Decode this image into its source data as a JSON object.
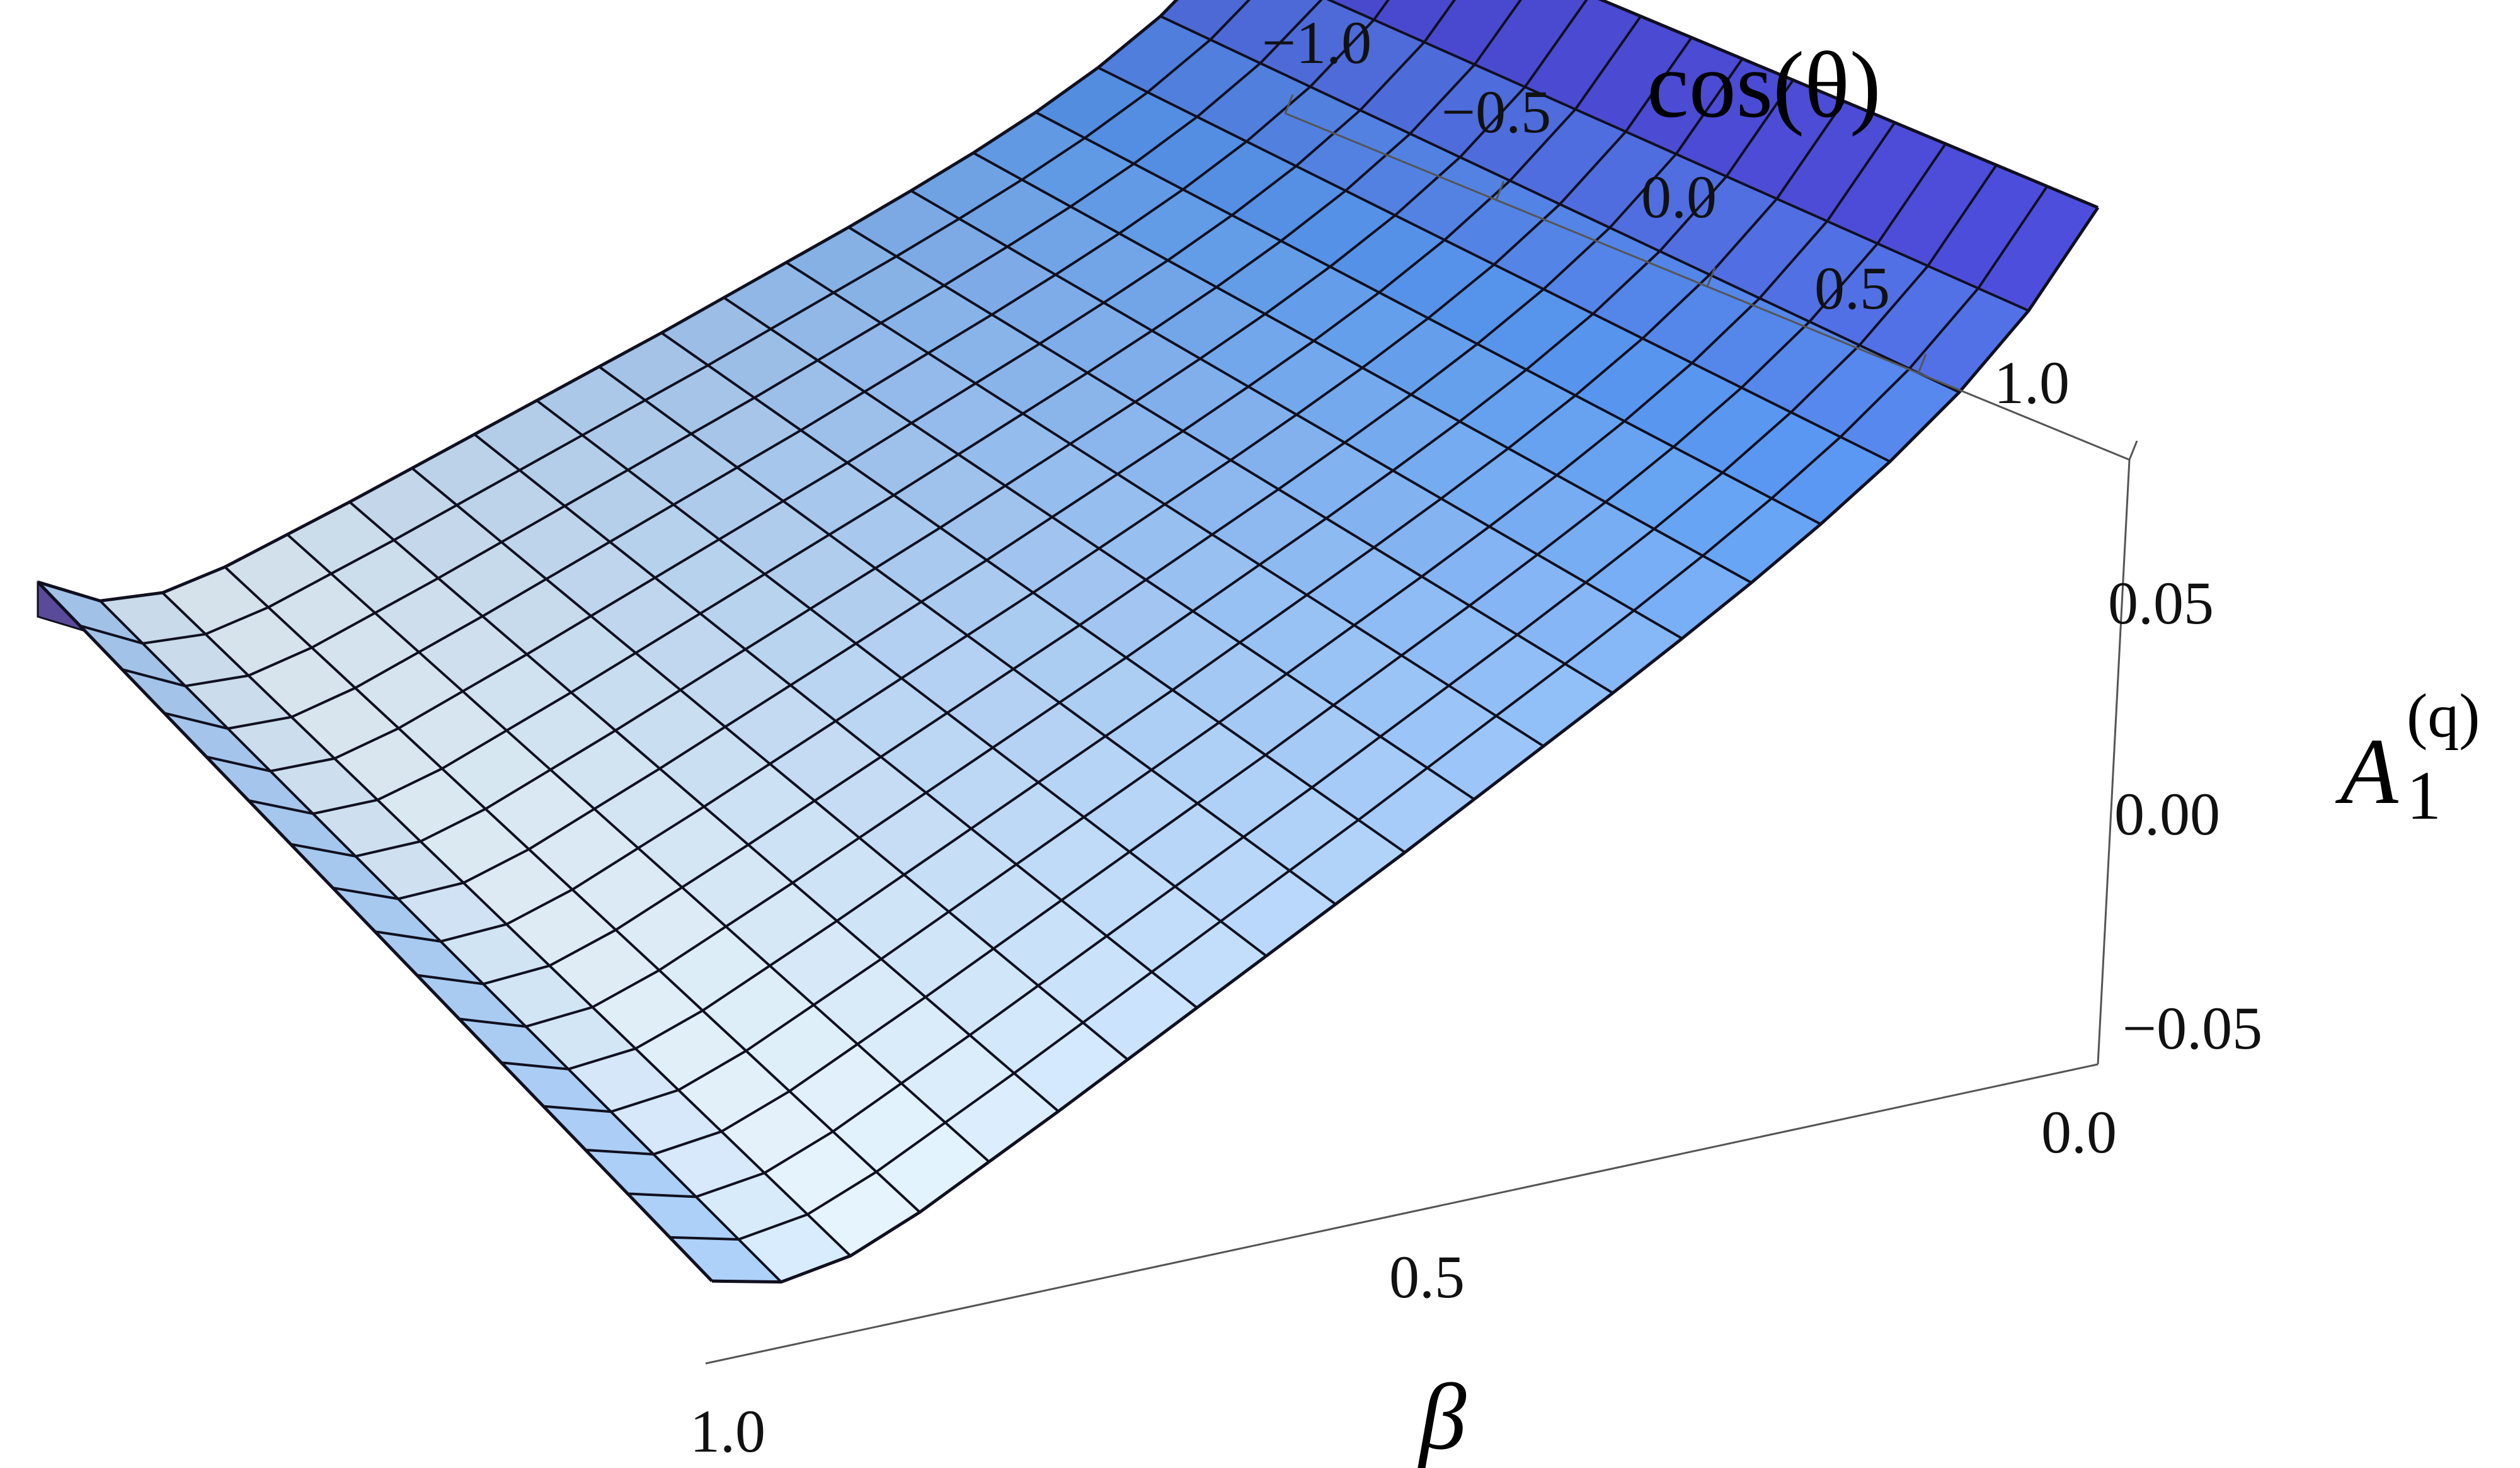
{
  "chart_data": {
    "type": "surface3d",
    "title": "",
    "axes": {
      "x": {
        "label": "β",
        "ticks": [
          0.0,
          0.5,
          1.0
        ],
        "tick_labels": [
          "0.0",
          "0.5",
          "1.0"
        ],
        "range": [
          0,
          1
        ]
      },
      "y": {
        "label": "cos(θ)",
        "ticks": [
          -1.0,
          -0.5,
          0.0,
          0.5,
          1.0
        ],
        "tick_labels": [
          "−1.0",
          "−0.5",
          "0.0",
          "0.5",
          "1.0"
        ],
        "range": [
          -1,
          1
        ]
      },
      "z": {
        "label_main": "A",
        "label_sub": "1",
        "label_sup": "(q)",
        "ticks": [
          -0.05,
          0.0,
          0.05
        ],
        "tick_labels": [
          "−0.05",
          "0.00",
          "0.05"
        ],
        "range": [
          -0.09,
          0.1
        ]
      }
    },
    "surface": {
      "beta": [
        0.0,
        0.05,
        0.1,
        0.15,
        0.2,
        0.25,
        0.3,
        0.35,
        0.4,
        0.45,
        0.5,
        0.55,
        0.6,
        0.65,
        0.7,
        0.75,
        0.8,
        0.85,
        0.9,
        0.95,
        1.0
      ],
      "cos_theta": [
        -1.0,
        -0.875,
        -0.75,
        -0.625,
        -0.5,
        -0.375,
        -0.25,
        -0.125,
        0.0,
        0.125,
        0.25,
        0.375,
        0.5,
        0.625,
        0.75,
        0.875,
        1.0
      ],
      "z_profile_vs_beta": [
        0.092,
        0.049,
        0.022,
        0.004,
        -0.009,
        -0.019,
        -0.027,
        -0.034,
        -0.04,
        -0.046,
        -0.052,
        -0.057,
        -0.062,
        -0.067,
        -0.072,
        -0.077,
        -0.081,
        -0.085,
        -0.084,
        -0.07,
        -0.036
      ]
    },
    "colors": {
      "high": "#4a38d6",
      "mid": "#5a9cf5",
      "low": "#e8f6ff",
      "edge": "#5a4a9a",
      "mesh": "#101020"
    }
  }
}
